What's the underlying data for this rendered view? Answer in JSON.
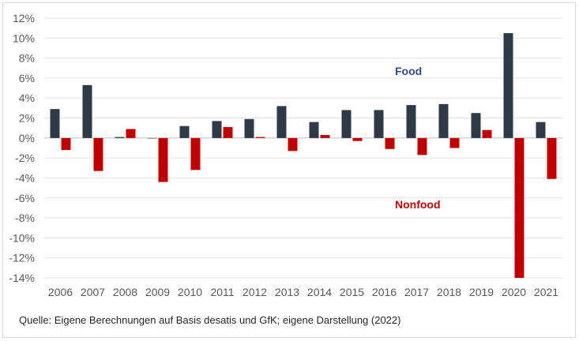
{
  "chart_data": {
    "type": "bar",
    "categories": [
      "2006",
      "2007",
      "2008",
      "2009",
      "2010",
      "2011",
      "2012",
      "2013",
      "2014",
      "2015",
      "2016",
      "2017",
      "2018",
      "2019",
      "2020",
      "2021"
    ],
    "series": [
      {
        "name": "Food",
        "color": "#2f3a47",
        "values": [
          2.9,
          5.3,
          0.1,
          0.0,
          1.2,
          1.7,
          1.9,
          3.2,
          1.6,
          2.8,
          2.8,
          3.3,
          3.4,
          2.5,
          10.5,
          1.6
        ]
      },
      {
        "name": "Nonfood",
        "color": "#c00000",
        "values": [
          -1.2,
          -3.3,
          0.9,
          -4.4,
          -3.2,
          1.1,
          0.1,
          -1.3,
          0.3,
          -0.3,
          -1.1,
          -1.7,
          -1.0,
          0.8,
          -14.0,
          -4.1
        ]
      }
    ],
    "ylim": [
      -14,
      12
    ],
    "yticks": [
      12,
      10,
      8,
      6,
      4,
      2,
      0,
      -2,
      -4,
      -6,
      -8,
      -10,
      -12,
      -14
    ],
    "ytick_labels": [
      "12%",
      "10%",
      "8%",
      "6%",
      "4%",
      "2%",
      "0%",
      "-2%",
      "-4%",
      "-6%",
      "-8%",
      "-10%",
      "-12%",
      "-14%"
    ],
    "grid": true,
    "annotations": [
      {
        "text": "Food",
        "color": "#2f4f7f"
      },
      {
        "text": "Nonfood",
        "color": "#c00000"
      }
    ]
  },
  "source_note": "Quelle: Eigene Berechnungen auf Basis desatis und GfK; eigene Darstellung  (2022)"
}
